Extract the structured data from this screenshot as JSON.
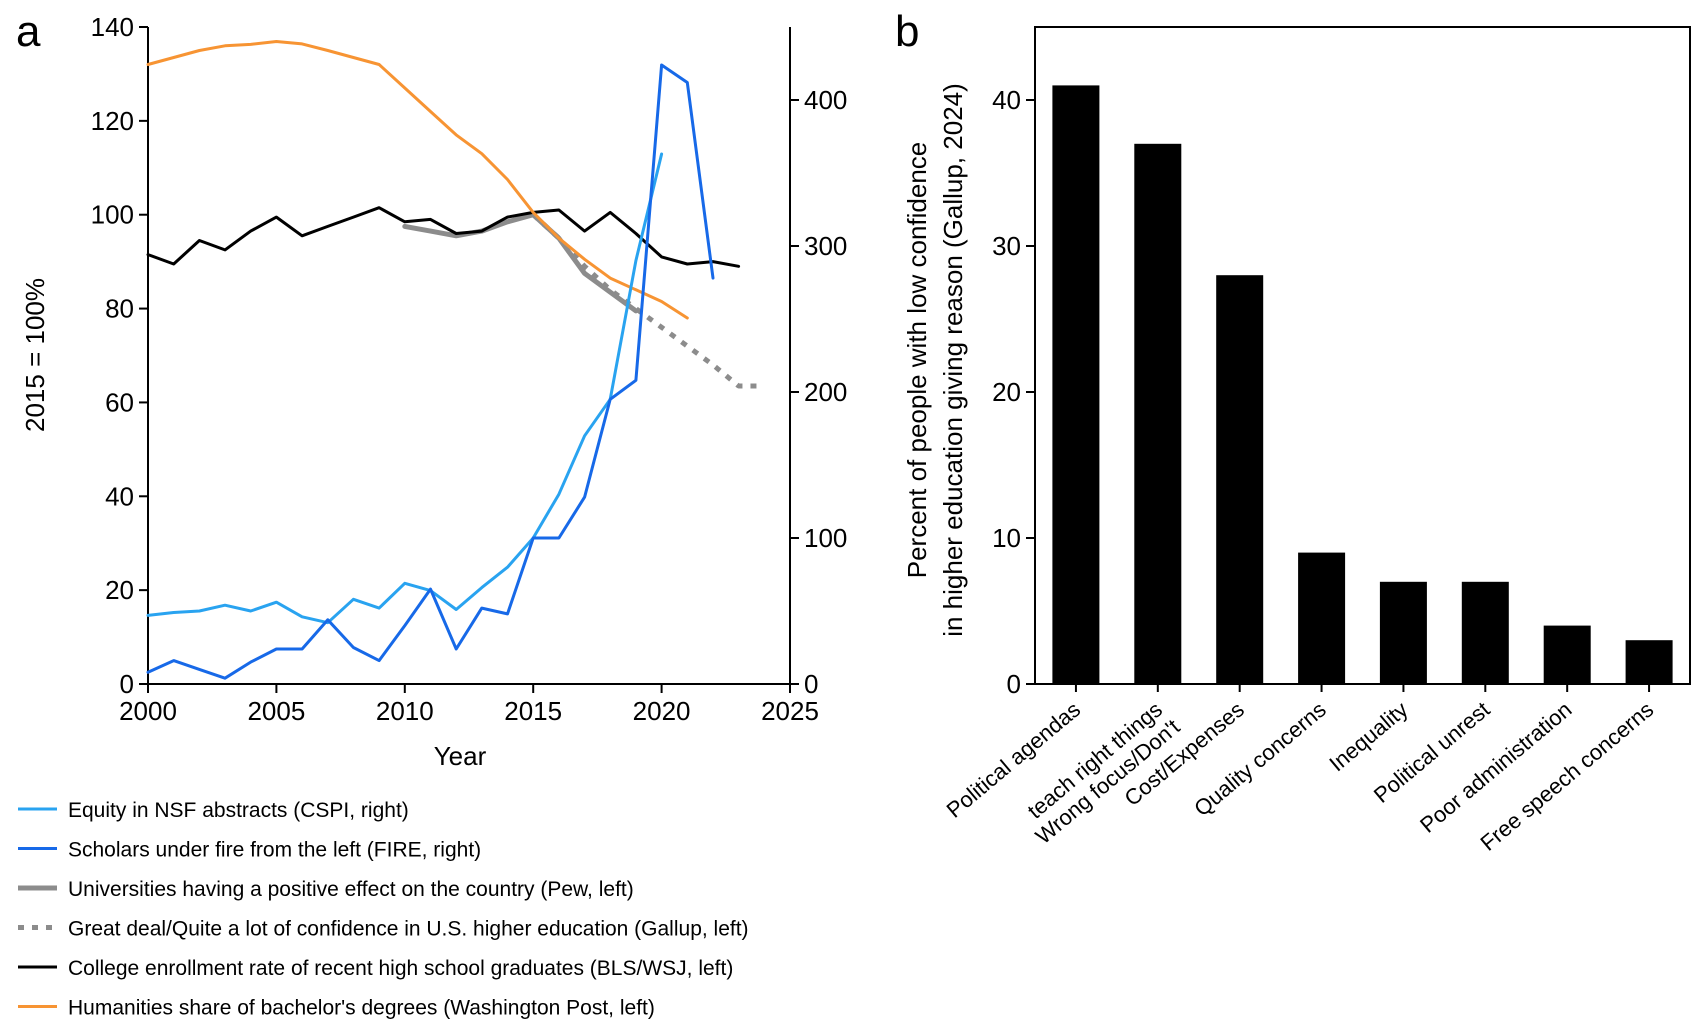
{
  "chart_data": [
    {
      "panel": "a",
      "type": "line",
      "xlabel": "Year",
      "ylabel_left": "2015 = 100%",
      "xlim": [
        2000,
        2025
      ],
      "ylim_left": [
        0,
        140
      ],
      "ylim_right": [
        0,
        450
      ],
      "x_ticks": [
        2000,
        2005,
        2010,
        2015,
        2020,
        2025
      ],
      "y_ticks_left": [
        0,
        20,
        40,
        60,
        80,
        100,
        120,
        140
      ],
      "y_ticks_right": [
        0,
        100,
        200,
        300,
        400
      ],
      "series": [
        {
          "name": "Equity in NSF abstracts (CSPI, right)",
          "axis": "right",
          "color": "#29a3f0",
          "style": "solid",
          "x": [
            2000,
            2001,
            2002,
            2003,
            2004,
            2005,
            2006,
            2007,
            2008,
            2009,
            2010,
            2011,
            2012,
            2013,
            2014,
            2015,
            2016,
            2017,
            2018,
            2019,
            2020
          ],
          "y": [
            47,
            49,
            50,
            54,
            50,
            56,
            46,
            42,
            58,
            52,
            69,
            64,
            51,
            66,
            80,
            100,
            130,
            170,
            195,
            290,
            363
          ]
        },
        {
          "name": "Scholars under fire from the left (FIRE, right)",
          "axis": "right",
          "color": "#1769e8",
          "style": "solid",
          "x": [
            2000,
            2001,
            2002,
            2003,
            2004,
            2005,
            2006,
            2007,
            2008,
            2009,
            2010,
            2011,
            2012,
            2013,
            2014,
            2015,
            2016,
            2017,
            2018,
            2019,
            2020,
            2021,
            2022
          ],
          "y": [
            8,
            16,
            10,
            4,
            15,
            24,
            24,
            44,
            25,
            16,
            40,
            65,
            24,
            52,
            48,
            100,
            100,
            128,
            195,
            208,
            424,
            412,
            278
          ]
        },
        {
          "name": "Universities having a positive effect on the country (Pew, left)",
          "axis": "left",
          "color": "#8c8c8c",
          "style": "thick",
          "x": [
            2010,
            2011,
            2012,
            2013,
            2014,
            2015,
            2016,
            2017,
            2018,
            2019
          ],
          "y": [
            97.5,
            96.5,
            95.5,
            96.5,
            98.5,
            100,
            95,
            87.5,
            83.5,
            79.5
          ]
        },
        {
          "name": "Great deal/Quite a lot of confidence in U.S. higher education (Gallup, left)",
          "axis": "left",
          "color": "#8c8c8c",
          "style": "dotted",
          "x": [
            2015,
            2016,
            2017,
            2018,
            2019,
            2020,
            2021,
            2022,
            2023,
            2024
          ],
          "y": [
            100,
            95,
            89,
            84,
            80,
            76,
            72,
            68,
            63.5,
            63.5
          ]
        },
        {
          "name": "College enrollment rate of recent high school graduates (BLS/WSJ, left)",
          "axis": "left",
          "color": "#000000",
          "style": "solid",
          "x": [
            2000,
            2001,
            2002,
            2003,
            2004,
            2005,
            2006,
            2007,
            2008,
            2009,
            2010,
            2011,
            2012,
            2013,
            2014,
            2015,
            2016,
            2017,
            2018,
            2019,
            2020,
            2021,
            2022,
            2023
          ],
          "y": [
            91.5,
            89.5,
            94.5,
            92.5,
            96.5,
            99.5,
            95.5,
            97.5,
            99.5,
            101.5,
            98.5,
            99,
            96,
            96.5,
            99.5,
            100.5,
            101,
            96.5,
            100.5,
            96,
            91,
            89.5,
            90,
            89
          ]
        },
        {
          "name": "Humanities share of bachelor's degrees (Washington Post, left)",
          "axis": "left",
          "color": "#f79433",
          "style": "solid",
          "x": [
            2000,
            2001,
            2002,
            2003,
            2004,
            2005,
            2006,
            2007,
            2008,
            2009,
            2010,
            2011,
            2012,
            2013,
            2014,
            2015,
            2016,
            2017,
            2018,
            2019,
            2020,
            2021
          ],
          "y": [
            132,
            133.5,
            135,
            136,
            136.3,
            136.9,
            136.4,
            135,
            133.5,
            132,
            127,
            122,
            117,
            113,
            107.5,
            100.5,
            95,
            90.5,
            86.5,
            84,
            81.5,
            78
          ]
        }
      ]
    },
    {
      "panel": "b",
      "type": "bar",
      "ylabel_line1": "Percent of people with low confidence",
      "ylabel_line2": "in higher education giving reason (Gallup, 2024)",
      "ylim": [
        0,
        45
      ],
      "y_ticks": [
        0,
        10,
        20,
        30,
        40
      ],
      "color": "#000000",
      "categories": [
        [
          "Political agendas"
        ],
        [
          "Wrong focus/Don't",
          "teach right things"
        ],
        [
          "Cost/Expenses"
        ],
        [
          "Quality concerns"
        ],
        [
          "Inequality"
        ],
        [
          "Political unrest"
        ],
        [
          "Poor administration"
        ],
        [
          "Free speech concerns"
        ]
      ],
      "values": [
        41,
        37,
        28,
        9,
        7,
        7,
        4,
        3
      ]
    }
  ]
}
